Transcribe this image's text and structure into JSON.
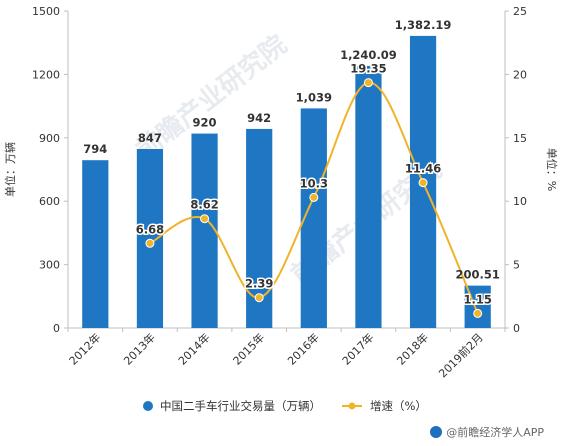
{
  "chart_data": {
    "type": "bar+line",
    "title": "",
    "categories": [
      "2012年",
      "2013年",
      "2014年",
      "2015年",
      "2016年",
      "2017年",
      "2018年",
      "2019前2月"
    ],
    "series": [
      {
        "name": "中国二手车行业交易量（万辆）",
        "type": "bar",
        "axis": "left",
        "values": [
          794,
          847,
          920,
          942,
          1039,
          1240.09,
          1382.19,
          200.51
        ],
        "labels": [
          "794",
          "847",
          "920",
          "942",
          "1,039",
          "1,240.09",
          "1,382.19",
          "200.51"
        ],
        "color": "#1f77c4"
      },
      {
        "name": "增速（%）",
        "type": "line",
        "axis": "right",
        "values": [
          null,
          6.68,
          8.62,
          2.39,
          10.3,
          19.35,
          11.46,
          1.15
        ],
        "labels": [
          "",
          "6.68",
          "8.62",
          "2.39",
          "10.3",
          "19.35",
          "11.46",
          "1.15"
        ],
        "color": "#f0b429"
      }
    ],
    "ylabel_left": "单位：万辆",
    "ylabel_right": "单位：%",
    "ylim_left": [
      0,
      1500
    ],
    "yticks_left": [
      "0",
      "300",
      "600",
      "900",
      "1200",
      "1500"
    ],
    "ylim_right": [
      0,
      25
    ],
    "yticks_right": [
      "0",
      "5",
      "10",
      "15",
      "20",
      "25"
    ],
    "grid": false,
    "legend_position": "bottom"
  },
  "watermark": "前瞻产业研究院",
  "footer": {
    "text": "@前瞻经济学人APP"
  }
}
